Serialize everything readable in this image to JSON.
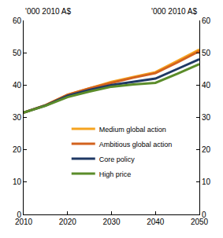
{
  "chart_data": {
    "type": "line",
    "ylabel": "'000 2010 A$",
    "y2label": "'000 2010 A$",
    "x": [
      2010,
      2015,
      2020,
      2025,
      2030,
      2035,
      2040,
      2045,
      2050
    ],
    "series": [
      {
        "name": "Medium global action",
        "color": "#F5A31F",
        "values": [
          31.5,
          33.8,
          37,
          39,
          41,
          42.5,
          44,
          47.5,
          51
        ]
      },
      {
        "name": "Ambitious global action",
        "color": "#D3621E",
        "values": [
          31.5,
          33.8,
          37,
          39,
          40.7,
          42.3,
          43.7,
          47,
          50.5
        ]
      },
      {
        "name": "Core policy",
        "color": "#1F3864",
        "values": [
          31.5,
          33.7,
          36.7,
          38.5,
          40,
          41,
          42,
          45,
          48
        ]
      },
      {
        "name": "High price",
        "color": "#5B8C2A",
        "values": [
          31.5,
          33.6,
          36.3,
          38,
          39.5,
          40.2,
          40.7,
          43.5,
          46.5
        ]
      }
    ],
    "xlim": [
      2010,
      2050
    ],
    "xticks": [
      2010,
      2020,
      2030,
      2040,
      2050
    ],
    "ylim": [
      0,
      60
    ],
    "yticks": [
      0,
      10,
      20,
      30,
      40,
      50,
      60
    ],
    "y2lim": [
      0,
      60
    ],
    "y2ticks": [
      0,
      10,
      20,
      30,
      40,
      50,
      60
    ],
    "grid": false,
    "legend": "center"
  }
}
